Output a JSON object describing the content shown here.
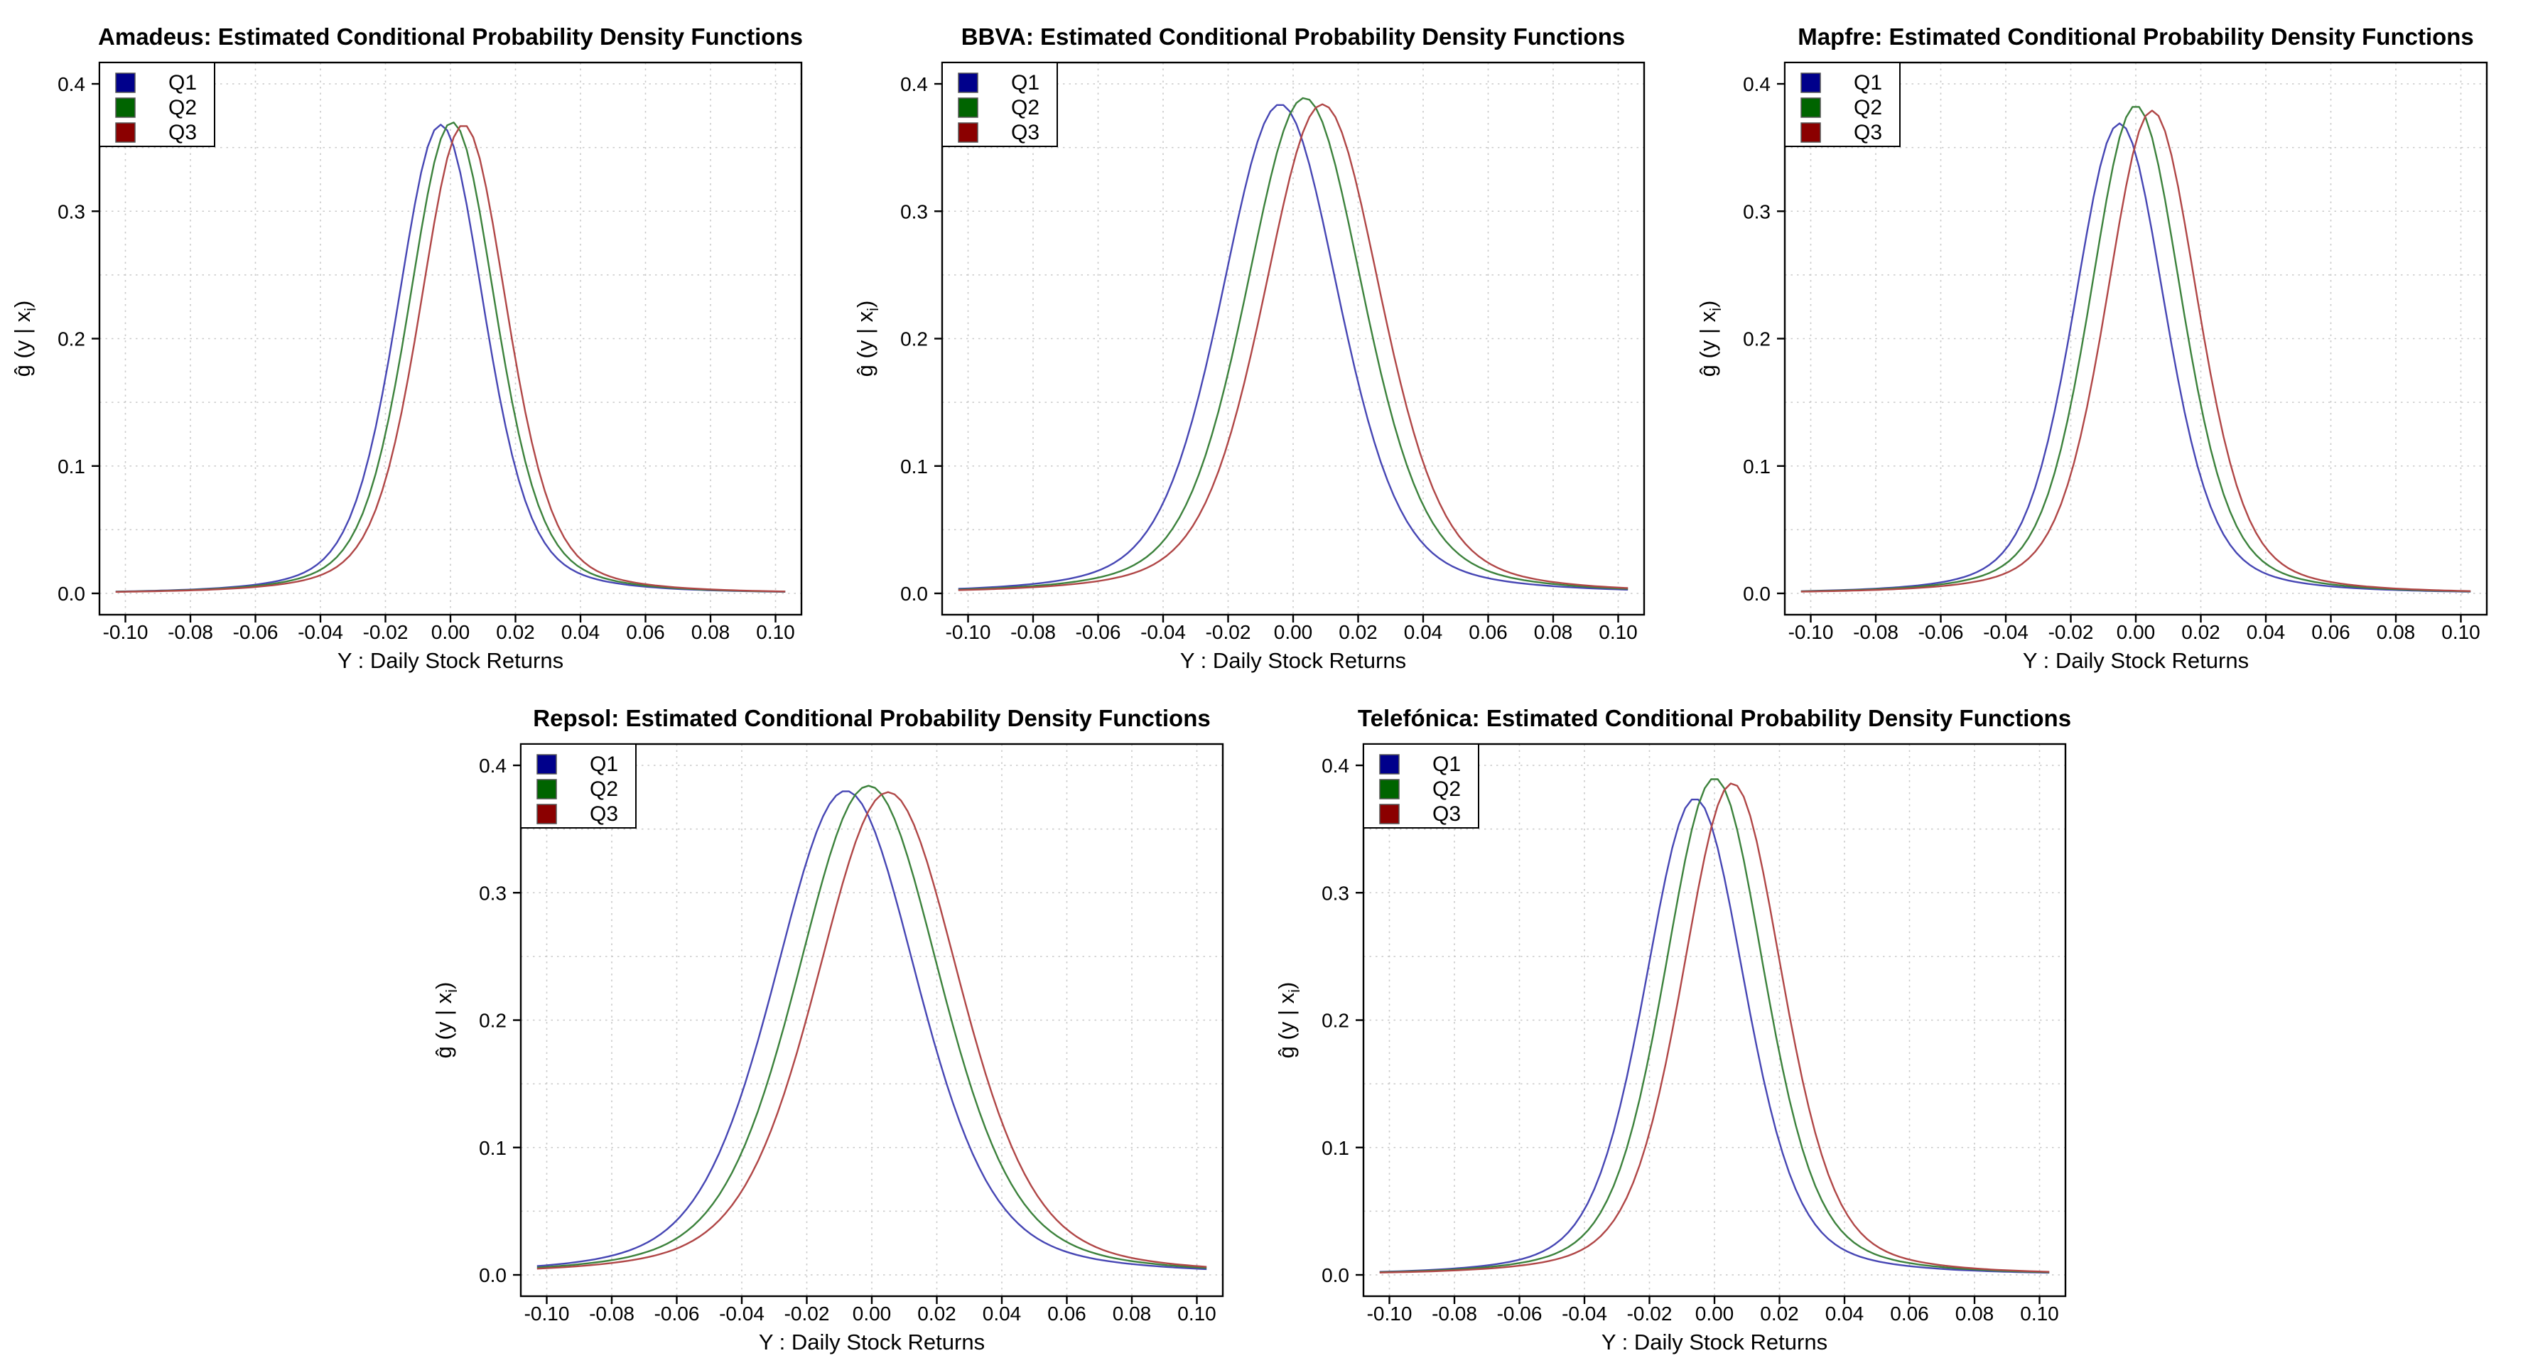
{
  "figure": {
    "background": "#ffffff",
    "text_color": "#000000",
    "grid_color": "#c9c9c9",
    "axis_color": "#000000"
  },
  "model": {
    "description": "density curve model: y = peak_y * ( gauss_weight * exp(-0.5*((x-peak_x)/(gauss_sigma*width_factor))^2) + (1-gauss_weight) * (1+((x-peak_x)/(tail_sigma*width_factor))^2)^(-tail_exponent) )",
    "gauss_weight": 0.55,
    "gauss_sigma": 0.0135,
    "tail_sigma": 0.021,
    "tail_exponent": 1.5,
    "curve_x_min": -0.103,
    "curve_x_max": 0.103
  },
  "chart_data": [
    {
      "type": "line",
      "title": "Amadeus: Estimated Conditional Probability Density Functions",
      "xlabel": "Y : Daily Stock Returns",
      "ylabel": "ĝ (y | x_i)",
      "xlim": [
        -0.1,
        0.1
      ],
      "ylim": [
        0.0,
        0.4
      ],
      "xticks": {
        "values": [
          -0.1,
          -0.08,
          -0.06,
          -0.04,
          -0.02,
          0.0,
          0.02,
          0.04,
          0.06,
          0.08,
          0.1
        ],
        "labels": [
          "-0.10",
          "-0.08",
          "-0.06",
          "-0.04",
          "-0.02",
          "0.00",
          "0.02",
          "0.04",
          "0.06",
          "0.08",
          "0.10"
        ]
      },
      "yticks": {
        "values": [
          0.0,
          0.1,
          0.2,
          0.3,
          0.4
        ],
        "labels": [
          "0.0",
          "0.1",
          "0.2",
          "0.3",
          "0.4"
        ]
      },
      "grid": {
        "x_step": 0.02,
        "y_step": 0.05,
        "style": "dotted"
      },
      "legend": {
        "position": "top-left",
        "entries": [
          {
            "label": "Q1",
            "fill": "#00008B"
          },
          {
            "label": "Q2",
            "fill": "#006400"
          },
          {
            "label": "Q3",
            "fill": "#8B0000"
          }
        ]
      },
      "series": [
        {
          "name": "Q1",
          "line_color": "#4646b4",
          "peak_x": -0.003,
          "peak_y": 0.368,
          "width_factor": 1.0
        },
        {
          "name": "Q2",
          "line_color": "#3c823c",
          "peak_x": 0.0005,
          "peak_y": 0.37,
          "width_factor": 1.0
        },
        {
          "name": "Q3",
          "line_color": "#b04646",
          "peak_x": 0.004,
          "peak_y": 0.368,
          "width_factor": 1.0
        }
      ]
    },
    {
      "type": "line",
      "title": "BBVA: Estimated Conditional Probability Density Functions",
      "xlabel": "Y : Daily Stock Returns",
      "ylabel": "ĝ (y | x_i)",
      "xlim": [
        -0.1,
        0.1
      ],
      "ylim": [
        0.0,
        0.4
      ],
      "xticks": {
        "values": [
          -0.1,
          -0.08,
          -0.06,
          -0.04,
          -0.02,
          0.0,
          0.02,
          0.04,
          0.06,
          0.08,
          0.1
        ],
        "labels": [
          "-0.10",
          "-0.08",
          "-0.06",
          "-0.04",
          "-0.02",
          "0.00",
          "0.02",
          "0.04",
          "0.06",
          "0.08",
          "0.10"
        ]
      },
      "yticks": {
        "values": [
          0.0,
          0.1,
          0.2,
          0.3,
          0.4
        ],
        "labels": [
          "0.0",
          "0.1",
          "0.2",
          "0.3",
          "0.4"
        ]
      },
      "grid": {
        "x_step": 0.02,
        "y_step": 0.05,
        "style": "dotted"
      },
      "legend": {
        "position": "top-left",
        "entries": [
          {
            "label": "Q1",
            "fill": "#00008B"
          },
          {
            "label": "Q2",
            "fill": "#006400"
          },
          {
            "label": "Q3",
            "fill": "#8B0000"
          }
        ]
      },
      "series": [
        {
          "name": "Q1",
          "line_color": "#4646b4",
          "peak_x": -0.004,
          "peak_y": 0.384,
          "width_factor": 1.35
        },
        {
          "name": "Q2",
          "line_color": "#3c823c",
          "peak_x": 0.0035,
          "peak_y": 0.389,
          "width_factor": 1.35
        },
        {
          "name": "Q3",
          "line_color": "#b04646",
          "peak_x": 0.009,
          "peak_y": 0.384,
          "width_factor": 1.35
        }
      ]
    },
    {
      "type": "line",
      "title": "Mapfre: Estimated Conditional Probability Density Functions",
      "xlabel": "Y : Daily Stock Returns",
      "ylabel": "ĝ (y | x_i)",
      "xlim": [
        -0.1,
        0.1
      ],
      "ylim": [
        0.0,
        0.4
      ],
      "xticks": {
        "values": [
          -0.1,
          -0.08,
          -0.06,
          -0.04,
          -0.02,
          0.0,
          0.02,
          0.04,
          0.06,
          0.08,
          0.1
        ],
        "labels": [
          "-0.10",
          "-0.08",
          "-0.06",
          "-0.04",
          "-0.02",
          "0.00",
          "0.02",
          "0.04",
          "0.06",
          "0.08",
          "0.10"
        ]
      },
      "yticks": {
        "values": [
          0.0,
          0.1,
          0.2,
          0.3,
          0.4
        ],
        "labels": [
          "0.0",
          "0.1",
          "0.2",
          "0.3",
          "0.4"
        ]
      },
      "grid": {
        "x_step": 0.02,
        "y_step": 0.05,
        "style": "dotted"
      },
      "legend": {
        "position": "top-left",
        "entries": [
          {
            "label": "Q1",
            "fill": "#00008B"
          },
          {
            "label": "Q2",
            "fill": "#006400"
          },
          {
            "label": "Q3",
            "fill": "#8B0000"
          }
        ]
      },
      "series": [
        {
          "name": "Q1",
          "line_color": "#4646b4",
          "peak_x": -0.005,
          "peak_y": 0.369,
          "width_factor": 1.05
        },
        {
          "name": "Q2",
          "line_color": "#3c823c",
          "peak_x": 0.0,
          "peak_y": 0.383,
          "width_factor": 1.05
        },
        {
          "name": "Q3",
          "line_color": "#b04646",
          "peak_x": 0.005,
          "peak_y": 0.379,
          "width_factor": 1.05
        }
      ]
    },
    {
      "type": "line",
      "title": "Repsol: Estimated Conditional Probability Density Functions",
      "xlabel": "Y : Daily Stock Returns",
      "ylabel": "ĝ (y | x_i)",
      "xlim": [
        -0.1,
        0.1
      ],
      "ylim": [
        0.0,
        0.4
      ],
      "xticks": {
        "values": [
          -0.1,
          -0.08,
          -0.06,
          -0.04,
          -0.02,
          0.0,
          0.02,
          0.04,
          0.06,
          0.08,
          0.1
        ],
        "labels": [
          "-0.10",
          "-0.08",
          "-0.06",
          "-0.04",
          "-0.02",
          "0.00",
          "0.02",
          "0.04",
          "0.06",
          "0.08",
          "0.10"
        ]
      },
      "yticks": {
        "values": [
          0.0,
          0.1,
          0.2,
          0.3,
          0.4
        ],
        "labels": [
          "0.0",
          "0.1",
          "0.2",
          "0.3",
          "0.4"
        ]
      },
      "grid": {
        "x_step": 0.02,
        "y_step": 0.05,
        "style": "dotted"
      },
      "legend": {
        "position": "top-left",
        "entries": [
          {
            "label": "Q1",
            "fill": "#00008B"
          },
          {
            "label": "Q2",
            "fill": "#006400"
          },
          {
            "label": "Q3",
            "fill": "#8B0000"
          }
        ]
      },
      "series": [
        {
          "name": "Q1",
          "line_color": "#4646b4",
          "peak_x": -0.008,
          "peak_y": 0.38,
          "width_factor": 1.65
        },
        {
          "name": "Q2",
          "line_color": "#3c823c",
          "peak_x": -0.001,
          "peak_y": 0.384,
          "width_factor": 1.65
        },
        {
          "name": "Q3",
          "line_color": "#b04646",
          "peak_x": 0.005,
          "peak_y": 0.379,
          "width_factor": 1.65
        }
      ]
    },
    {
      "type": "line",
      "title": "Telefónica: Estimated Conditional Probability Density Functions",
      "xlabel": "Y : Daily Stock Returns",
      "ylabel": "ĝ (y | x_i)",
      "xlim": [
        -0.1,
        0.1
      ],
      "ylim": [
        0.0,
        0.4
      ],
      "xticks": {
        "values": [
          -0.1,
          -0.08,
          -0.06,
          -0.04,
          -0.02,
          0.0,
          0.02,
          0.04,
          0.06,
          0.08,
          0.1
        ],
        "labels": [
          "-0.10",
          "-0.08",
          "-0.06",
          "-0.04",
          "-0.02",
          "0.00",
          "0.02",
          "0.04",
          "0.06",
          "0.08",
          "0.10"
        ]
      },
      "yticks": {
        "values": [
          0.0,
          0.1,
          0.2,
          0.3,
          0.4
        ],
        "labels": [
          "0.0",
          "0.1",
          "0.2",
          "0.3",
          "0.4"
        ]
      },
      "grid": {
        "x_step": 0.02,
        "y_step": 0.05,
        "style": "dotted"
      },
      "legend": {
        "position": "top-left",
        "entries": [
          {
            "label": "Q1",
            "fill": "#00008B"
          },
          {
            "label": "Q2",
            "fill": "#006400"
          },
          {
            "label": "Q3",
            "fill": "#8B0000"
          }
        ]
      },
      "series": [
        {
          "name": "Q1",
          "line_color": "#4646b4",
          "peak_x": -0.006,
          "peak_y": 0.374,
          "width_factor": 1.15
        },
        {
          "name": "Q2",
          "line_color": "#3c823c",
          "peak_x": 0.0,
          "peak_y": 0.39,
          "width_factor": 1.15
        },
        {
          "name": "Q3",
          "line_color": "#b04646",
          "peak_x": 0.0055,
          "peak_y": 0.386,
          "width_factor": 1.15
        }
      ]
    }
  ]
}
